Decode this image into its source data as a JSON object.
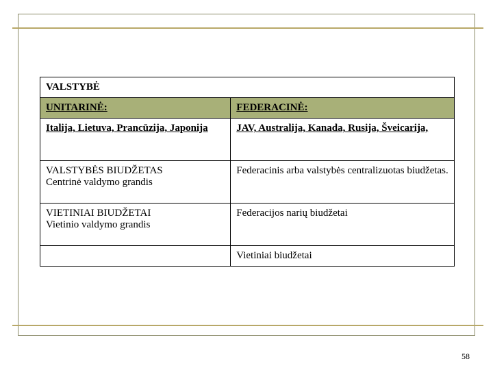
{
  "table": {
    "title": "VALSTYBĖ",
    "header": {
      "left": "UNITARINĖ:",
      "right": "FEDERACINĖ:"
    },
    "examples": {
      "left": "Italija, Lietuva, Prancūzija, Japonija",
      "right": "JAV, Australija, Kanada, Rusija, Šveicarija,"
    },
    "row3": {
      "left_line1": "VALSTYBĖS BIUDŽETAS",
      "left_line2": "Centrinė valdymo grandis",
      "right": "Federacinis arba valstybės centralizuotas biudžetas."
    },
    "row4": {
      "left_line1": "VIETINIAI BIUDŽETAI",
      "left_line2": "Vietinio valdymo grandis",
      "right": "Federacijos narių biudžetai"
    },
    "row5": {
      "right": "Vietiniai biudžetai"
    }
  },
  "page_number": "58",
  "colors": {
    "frame_border": "#888866",
    "rule": "#b8a868",
    "header_bg": "#a8b078",
    "text": "#000000",
    "bg": "#ffffff"
  }
}
